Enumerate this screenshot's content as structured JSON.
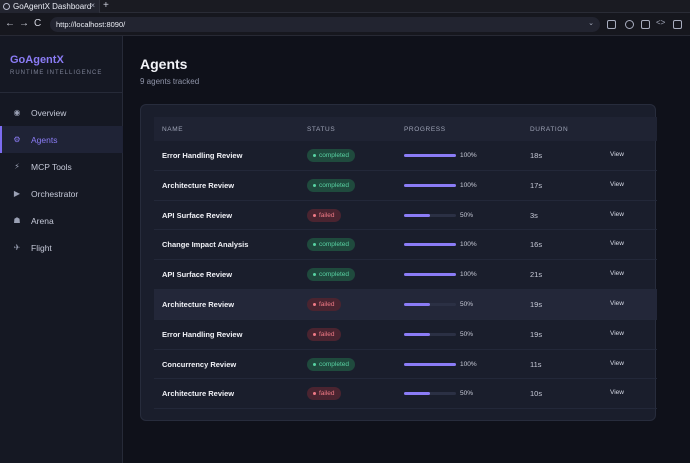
{
  "browser": {
    "tab_title": "GoAgentX Dashboard",
    "tab_close": "×",
    "new_tab": "+",
    "url": "http://localhost:8090/",
    "back": "←",
    "forward": "→",
    "reload": "C",
    "code_icon": "<>"
  },
  "sidebar": {
    "brand": "GoAgentX",
    "tagline": "RUNTIME INTELLIGENCE",
    "items": [
      {
        "label": "Overview",
        "icon": "◉"
      },
      {
        "label": "Agents",
        "icon": "⚙"
      },
      {
        "label": "MCP Tools",
        "icon": "⚡"
      },
      {
        "label": "Orchestrator",
        "icon": "▶"
      },
      {
        "label": "Arena",
        "icon": "☗"
      },
      {
        "label": "Flight",
        "icon": "✈"
      }
    ]
  },
  "main": {
    "title": "Agents",
    "subtitle": "9 agents tracked",
    "columns": {
      "name": "NAME",
      "status": "STATUS",
      "progress": "PROGRESS",
      "duration": "DURATION"
    },
    "rows": [
      {
        "name": "Error Handling Review",
        "status": "completed",
        "progress": 1.0,
        "pct": "100%",
        "duration": "18s",
        "action": "View"
      },
      {
        "name": "Architecture Review",
        "status": "completed",
        "progress": 1.0,
        "pct": "100%",
        "duration": "17s",
        "action": "View"
      },
      {
        "name": "API Surface Review",
        "status": "failed",
        "progress": 0.5,
        "pct": "50%",
        "duration": "3s",
        "action": "View"
      },
      {
        "name": "Change Impact Analysis",
        "status": "completed",
        "progress": 1.0,
        "pct": "100%",
        "duration": "16s",
        "action": "View"
      },
      {
        "name": "API Surface Review",
        "status": "completed",
        "progress": 1.0,
        "pct": "100%",
        "duration": "21s",
        "action": "View"
      },
      {
        "name": "Architecture Review",
        "status": "failed",
        "progress": 0.5,
        "pct": "50%",
        "duration": "19s",
        "action": "View"
      },
      {
        "name": "Error Handling Review",
        "status": "failed",
        "progress": 0.5,
        "pct": "50%",
        "duration": "19s",
        "action": "View"
      },
      {
        "name": "Concurrency Review",
        "status": "completed",
        "progress": 1.0,
        "pct": "100%",
        "duration": "11s",
        "action": "View"
      },
      {
        "name": "Architecture Review",
        "status": "failed",
        "progress": 0.5,
        "pct": "50%",
        "duration": "10s",
        "action": "View"
      }
    ]
  },
  "colors": {
    "accent": "#8b7cf6",
    "completed": "#58d2a2",
    "failed": "#f07a86"
  }
}
